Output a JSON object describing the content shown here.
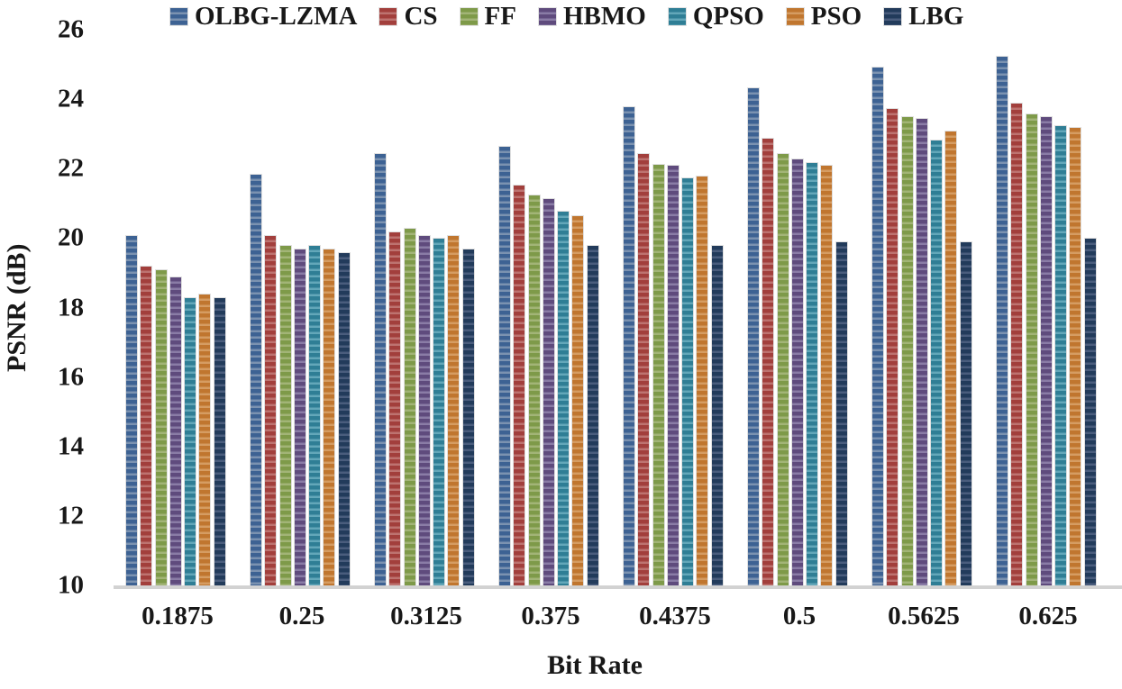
{
  "chart_data": {
    "type": "bar",
    "title": "",
    "xlabel": "Bit Rate",
    "ylabel": "PSNR (dB)",
    "ylim": [
      10,
      26
    ],
    "yticks": [
      26,
      24,
      22,
      20,
      18,
      16,
      14,
      12,
      10
    ],
    "grid": false,
    "legend_position": "top",
    "bar_texture": "horizontal-stripes",
    "baseline_color": "#d2d2d2",
    "text_color": "#181818",
    "categories": [
      "0.1875",
      "0.25",
      "0.3125",
      "0.375",
      "0.4375",
      "0.5",
      "0.5625",
      "0.625"
    ],
    "series": [
      {
        "name": "OLBG-LZMA",
        "color": "#3d6293",
        "stripe_color": "#7b92b0",
        "values": [
          20.1,
          21.85,
          22.45,
          22.65,
          23.8,
          24.35,
          24.95,
          25.25
        ]
      },
      {
        "name": "CS",
        "color": "#a23f3c",
        "stripe_color": "#bd7370",
        "values": [
          19.2,
          20.1,
          20.2,
          21.55,
          22.45,
          22.9,
          23.75,
          23.9
        ]
      },
      {
        "name": "FF",
        "color": "#7e9a49",
        "stripe_color": "#a2b477",
        "values": [
          19.1,
          19.8,
          20.3,
          21.25,
          22.15,
          22.45,
          23.5,
          23.6
        ]
      },
      {
        "name": "HBMO",
        "color": "#5f4b7d",
        "stripe_color": "#8a7ca6",
        "values": [
          18.9,
          19.7,
          20.1,
          21.15,
          22.1,
          22.3,
          23.45,
          23.5
        ]
      },
      {
        "name": "QPSO",
        "color": "#2f7e95",
        "stripe_color": "#63a7b9",
        "values": [
          18.3,
          19.8,
          20.0,
          20.8,
          21.75,
          22.2,
          22.85,
          23.25
        ]
      },
      {
        "name": "PSO",
        "color": "#c0762f",
        "stripe_color": "#d59c62",
        "values": [
          18.4,
          19.7,
          20.1,
          20.65,
          21.8,
          22.1,
          23.1,
          23.2
        ]
      },
      {
        "name": "LBG",
        "color": "#223b5b",
        "stripe_color": "#4a5d7d",
        "values": [
          18.3,
          19.6,
          19.7,
          19.8,
          19.8,
          19.9,
          19.9,
          20.0
        ]
      }
    ]
  }
}
